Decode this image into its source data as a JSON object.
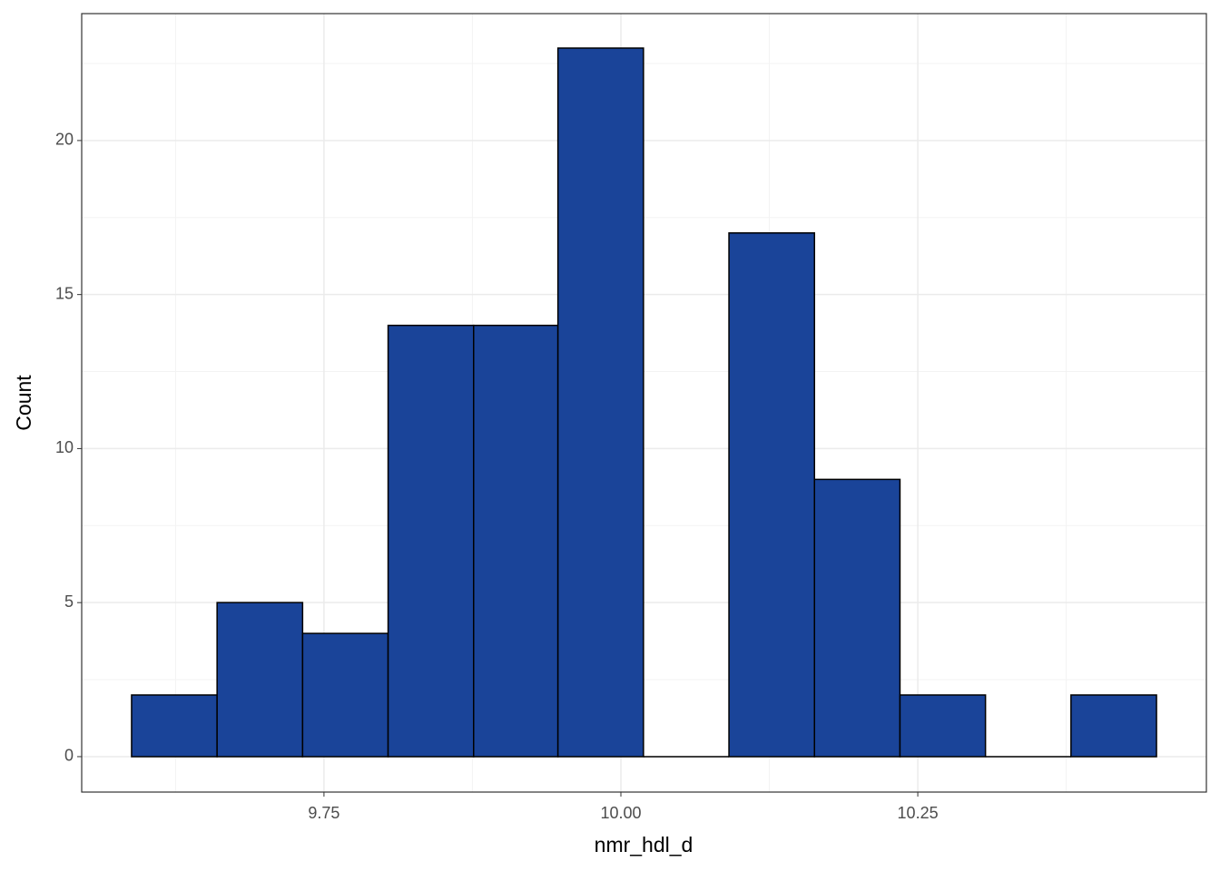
{
  "chart_data": {
    "type": "histogram",
    "x_label": "nmr_hdl_d",
    "y_label": "Count",
    "bins": [
      9.588,
      9.66,
      9.732,
      9.804,
      9.876,
      9.947,
      10.019,
      10.091,
      10.163,
      10.235,
      10.307,
      10.379,
      10.451
    ],
    "values": [
      2,
      5,
      4,
      14,
      14,
      23,
      0,
      17,
      9,
      2,
      0,
      2
    ],
    "color": "#1a4499",
    "edge_color": "#000000",
    "xlim": [
      9.546,
      10.493
    ],
    "ylim": [
      -1.15,
      24.12
    ],
    "xticks": [
      9.75,
      {
        "value": 10,
        "label": "10.00"
      },
      10.25
    ],
    "yticks": [
      0,
      5,
      10,
      15,
      20
    ],
    "grid": true
  }
}
